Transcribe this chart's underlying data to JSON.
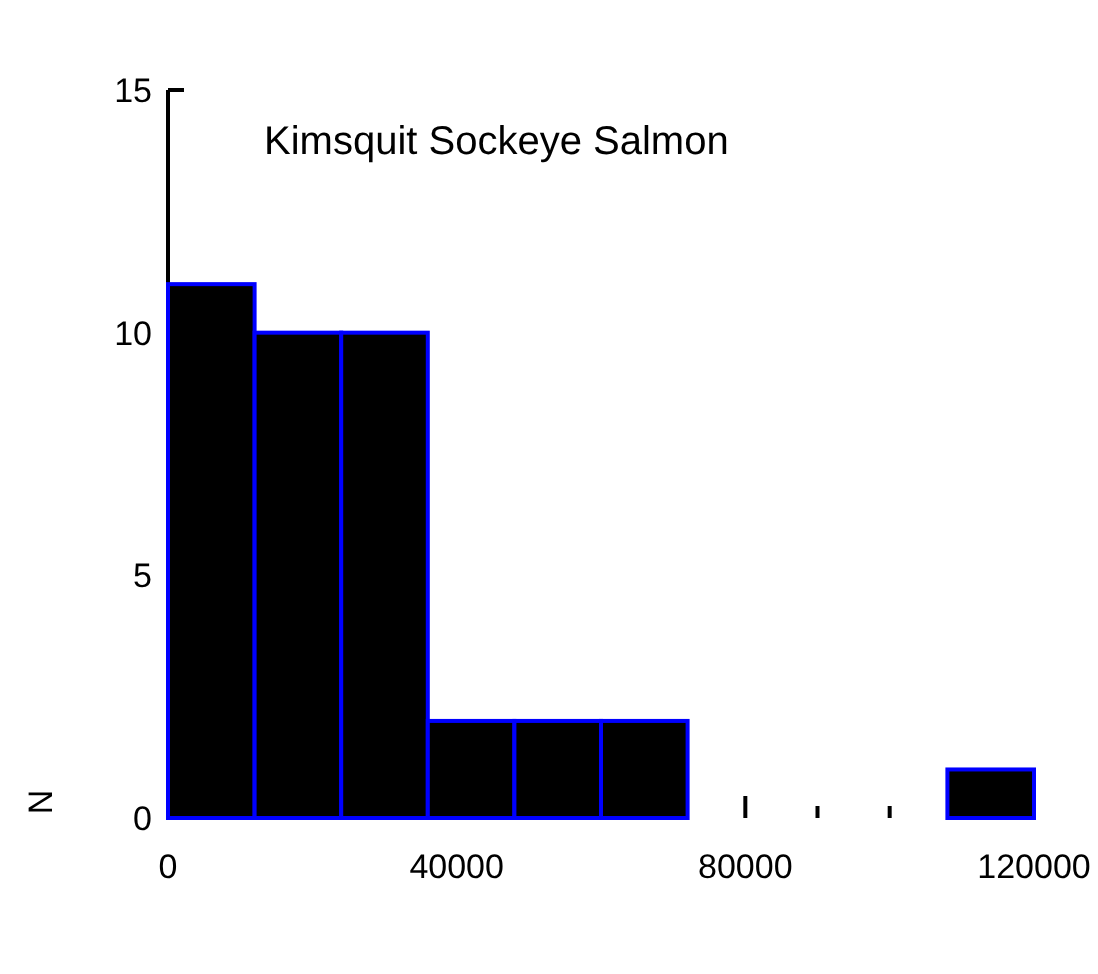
{
  "chart_data": {
    "type": "histogram",
    "title": "Kimsquit Sockeye Salmon",
    "ylabel": "N",
    "bins": [
      0,
      12000,
      24000,
      36000,
      48000,
      60000,
      72000,
      84000,
      96000,
      108000,
      120000
    ],
    "values": [
      11,
      10,
      10,
      2,
      2,
      2,
      0,
      0,
      0,
      1
    ],
    "color": "#000000",
    "xlim": [
      0,
      120000
    ],
    "xticks": [
      0,
      40000,
      80000,
      {
        "value": 90000,
        "label": null
      },
      {
        "value": 100000,
        "label": null
      },
      120000
    ],
    "ylim": [
      0,
      15
    ],
    "yticks": [
      0,
      5,
      10,
      15
    ],
    "grid": false
  }
}
